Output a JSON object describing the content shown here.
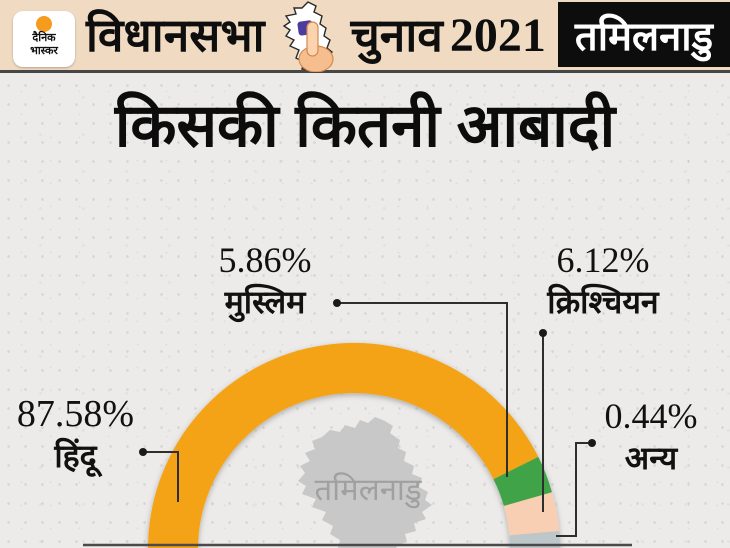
{
  "header": {
    "logo_line1": "दैनिक",
    "logo_line2": "भास्कर",
    "title_left": "विधानसभा",
    "title_mid": "चुनाव",
    "title_year": "2021",
    "state_badge": "तमिलनाडु"
  },
  "page_title": "किसकी कितनी आबादी",
  "chart_data": {
    "type": "pie",
    "variant": "half-donut",
    "title": "किसकी कितनी आबादी",
    "watermark": "तमिलनाडु",
    "unit": "percent",
    "total": 100,
    "legend_position": "callouts",
    "slices": [
      {
        "key": "hindu",
        "label": "हिंदू",
        "pct_label": "87.58%",
        "value": 87.58,
        "color": "#F5A317"
      },
      {
        "key": "muslim",
        "label": "मुस्लिम",
        "pct_label": "5.86%",
        "value": 5.86,
        "color": "#3FA347"
      },
      {
        "key": "christian",
        "label": "क्रिश्चियन",
        "pct_label": "6.12%",
        "value": 6.12,
        "color": "#F8CFB2"
      },
      {
        "key": "other",
        "label": "अन्य",
        "pct_label": "0.44%",
        "value": 0.44,
        "color": "#BDC6C9"
      }
    ]
  },
  "colors": {
    "header_bg": "#F0DBC2",
    "badge_bg": "#0D0D0D",
    "badge_text": "#FFFFFF",
    "page_bg": "#ECEBE9",
    "text": "#151515",
    "leader_line": "#2E2E2E",
    "baseline": "#4A4A4A",
    "watermark_map": "#C8C8C8",
    "watermark_text": "#A0A0A0",
    "logo_sun": "#F59B1E"
  }
}
